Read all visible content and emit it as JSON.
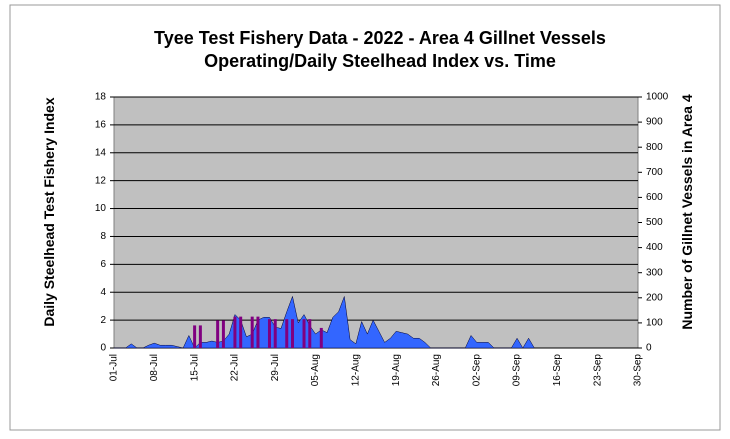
{
  "chart_data": {
    "type": "area",
    "title": "Tyee Test Fishery Data - 2022 - Area 4 Gillnet Vessels",
    "subtitle": "Operating/Daily Steelhead Index vs. Time",
    "y_label": "Daily Steelhead Test Fishery Index",
    "y2_label": "Number of Gillnet Vessels in Area 4",
    "categories": [
      "01-Jul",
      null,
      null,
      null,
      null,
      null,
      null,
      "08-Jul",
      null,
      null,
      null,
      null,
      null,
      null,
      "15-Jul",
      null,
      null,
      null,
      null,
      null,
      null,
      "22-Jul",
      null,
      null,
      null,
      null,
      null,
      null,
      "29-Jul",
      null,
      null,
      null,
      null,
      null,
      null,
      "05-Aug",
      null,
      null,
      null,
      null,
      null,
      null,
      "12-Aug",
      null,
      null,
      null,
      null,
      null,
      null,
      "19-Aug",
      null,
      null,
      null,
      null,
      null,
      null,
      "26-Aug",
      null,
      null,
      null,
      null,
      null,
      null,
      "02-Sep",
      null,
      null,
      null,
      null,
      null,
      null,
      "09-Sep",
      null,
      null,
      null,
      null,
      null,
      null,
      "16-Sep",
      null,
      null,
      null,
      null,
      null,
      null,
      "23-Sep",
      null,
      null,
      null,
      null,
      null,
      null,
      "30-Sep"
    ],
    "series": [
      {
        "type": "area",
        "axis": "y",
        "color": "#3366ff",
        "values": [
          0,
          0,
          0,
          0.3,
          0,
          0,
          0.2,
          0.35,
          0.2,
          0.2,
          0.2,
          0.1,
          0,
          0.9,
          0,
          0.4,
          0.4,
          0.5,
          0.4,
          0.5,
          1.0,
          2.4,
          2.0,
          0.8,
          1.0,
          2.0,
          2.2,
          2.2,
          1.5,
          1.4,
          2.6,
          3.7,
          1.8,
          2.4,
          1.6,
          1.0,
          1.3,
          1.1,
          2.2,
          2.6,
          3.7,
          0.6,
          0.3,
          1.9,
          1.0,
          2.0,
          1.2,
          0.4,
          0.7,
          1.2,
          1.1,
          1.0,
          0.7,
          0.7,
          0.4,
          0,
          0,
          0,
          0,
          0,
          0,
          0,
          0.9,
          0.4,
          0.4,
          0.4,
          0,
          0,
          0,
          0,
          0.7,
          0,
          0.7,
          0,
          null,
          null,
          null,
          null,
          null,
          null,
          null,
          null,
          null,
          null,
          null,
          null,
          null,
          null,
          null,
          null,
          null,
          null
        ]
      },
      {
        "type": "bar",
        "axis": "y2",
        "color": "#800080",
        "values": [
          null,
          null,
          null,
          null,
          null,
          null,
          null,
          null,
          null,
          null,
          null,
          null,
          null,
          null,
          90,
          90,
          null,
          null,
          110,
          110,
          null,
          125,
          125,
          null,
          125,
          125,
          null,
          115,
          115,
          null,
          115,
          115,
          null,
          115,
          115,
          null,
          80,
          null,
          null,
          null,
          null,
          null,
          null,
          null,
          null,
          null,
          null,
          null,
          null,
          null,
          null,
          null,
          null,
          null,
          null,
          null,
          null,
          null,
          null,
          null,
          null,
          null,
          null,
          null,
          null,
          null,
          null,
          null,
          null,
          null,
          null,
          null,
          null,
          null,
          null,
          null,
          null,
          null,
          null,
          null,
          null,
          null,
          null,
          null,
          null,
          null,
          null,
          null,
          null,
          null,
          null,
          null
        ]
      }
    ],
    "ylim": [
      0,
      18
    ],
    "yticks": [
      0,
      2,
      4,
      6,
      8,
      10,
      12,
      14,
      16,
      18
    ],
    "y2lim": [
      0,
      1000
    ],
    "y2ticks": [
      0,
      100,
      200,
      300,
      400,
      500,
      600,
      700,
      800,
      900,
      1000
    ],
    "grid": true,
    "plot_background": "#c0c0c0"
  }
}
